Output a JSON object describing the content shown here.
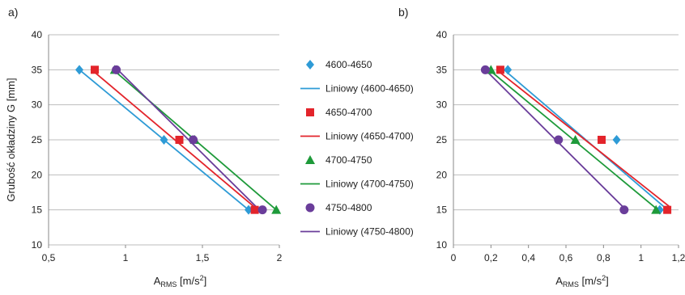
{
  "chart_data": [
    {
      "type": "scatter",
      "panel_label": "a)",
      "ylabel": "Grubość okładziny G [mm]",
      "xlabel_main": "A",
      "xlabel_sub": "RMS",
      "xlabel_unit": " [m/s",
      "xlabel_sup": "2",
      "xlabel_close": "]",
      "xlim": [
        0.5,
        2
      ],
      "ylim": [
        10,
        40
      ],
      "xticks": [
        "0,5",
        "1",
        "1,5",
        "2"
      ],
      "xtick_values": [
        0.5,
        1,
        1.5,
        2
      ],
      "yticks": [
        "10",
        "15",
        "20",
        "25",
        "30",
        "35",
        "40"
      ],
      "ytick_values": [
        10,
        15,
        20,
        25,
        30,
        35,
        40
      ],
      "grid": "horizontal",
      "series": [
        {
          "name": "4600-4650",
          "marker": "diamond",
          "color": "#2e9bd6",
          "points": [
            [
              0.7,
              35
            ],
            [
              1.25,
              25
            ],
            [
              1.8,
              15
            ]
          ],
          "trend_name": "Liniowy (4600-4650)",
          "trend": [
            [
              0.7,
              35
            ],
            [
              1.8,
              15
            ]
          ]
        },
        {
          "name": "4650-4700",
          "marker": "square",
          "color": "#e3242b",
          "points": [
            [
              0.8,
              35
            ],
            [
              1.35,
              25
            ],
            [
              1.84,
              15
            ]
          ],
          "trend_name": "Liniowy (4650-4700)",
          "trend": [
            [
              0.78,
              35
            ],
            [
              1.86,
              15
            ]
          ]
        },
        {
          "name": "4700-4750",
          "marker": "triangle",
          "color": "#1e9a3a",
          "points": [
            [
              0.93,
              35
            ],
            [
              1.45,
              25
            ],
            [
              1.98,
              15
            ]
          ],
          "trend_name": "Liniowy (4700-4750)",
          "trend": [
            [
              0.92,
              35
            ],
            [
              1.98,
              15
            ]
          ]
        },
        {
          "name": "4750-4800",
          "marker": "circle",
          "color": "#6a3d9a",
          "points": [
            [
              0.94,
              35
            ],
            [
              1.44,
              25
            ],
            [
              1.89,
              15
            ]
          ],
          "trend_name": "Liniowy (4750-4800)",
          "trend": [
            [
              0.95,
              35
            ],
            [
              1.87,
              15
            ]
          ]
        }
      ]
    },
    {
      "type": "scatter",
      "panel_label": "b)",
      "xlabel_main": "A",
      "xlabel_sub": "RMS",
      "xlabel_unit": " [m/s",
      "xlabel_sup": "2",
      "xlabel_close": "]",
      "xlim": [
        0,
        1.2
      ],
      "ylim": [
        10,
        40
      ],
      "xticks": [
        "0",
        "0,2",
        "0,4",
        "0,6",
        "0,8",
        "1",
        "1,2"
      ],
      "xtick_values": [
        0,
        0.2,
        0.4,
        0.6,
        0.8,
        1,
        1.2
      ],
      "yticks": [
        "10",
        "15",
        "20",
        "25",
        "30",
        "35",
        "40"
      ],
      "ytick_values": [
        10,
        15,
        20,
        25,
        30,
        35,
        40
      ],
      "grid": "horizontal",
      "series": [
        {
          "name": "4600-4650",
          "marker": "diamond",
          "color": "#2e9bd6",
          "points": [
            [
              0.29,
              35
            ],
            [
              0.87,
              25
            ],
            [
              1.1,
              15
            ]
          ],
          "trend_name": "Liniowy (4600-4650)",
          "trend": [
            [
              0.27,
              35
            ],
            [
              1.12,
              15.5
            ]
          ]
        },
        {
          "name": "4650-4700",
          "marker": "square",
          "color": "#e3242b",
          "points": [
            [
              0.25,
              35
            ],
            [
              0.79,
              25
            ],
            [
              1.14,
              15
            ]
          ],
          "trend_name": "Liniowy (4650-4700)",
          "trend": [
            [
              0.23,
              35
            ],
            [
              1.15,
              15.5
            ]
          ]
        },
        {
          "name": "4700-4750",
          "marker": "triangle",
          "color": "#1e9a3a",
          "points": [
            [
              0.2,
              35
            ],
            [
              0.65,
              25
            ],
            [
              1.08,
              15
            ]
          ],
          "trend_name": "Liniowy (4700-4750)",
          "trend": [
            [
              0.19,
              35
            ],
            [
              1.09,
              15
            ]
          ]
        },
        {
          "name": "4750-4800",
          "marker": "circle",
          "color": "#6a3d9a",
          "points": [
            [
              0.17,
              35
            ],
            [
              0.56,
              25
            ],
            [
              0.91,
              15
            ]
          ],
          "trend_name": "Liniowy (4750-4800)",
          "trend": [
            [
              0.17,
              35
            ],
            [
              0.92,
              15
            ]
          ]
        }
      ]
    }
  ],
  "legend": {
    "placement": "between-panels",
    "items": [
      {
        "label": "4600-4650",
        "kind": "marker",
        "marker": "diamond",
        "color": "#2e9bd6"
      },
      {
        "label": "Liniowy (4600-4650)",
        "kind": "line",
        "color": "#2e9bd6"
      },
      {
        "label": "4650-4700",
        "kind": "marker",
        "marker": "square",
        "color": "#e3242b"
      },
      {
        "label": "Liniowy (4650-4700)",
        "kind": "line",
        "color": "#e3242b"
      },
      {
        "label": "4700-4750",
        "kind": "marker",
        "marker": "triangle",
        "color": "#1e9a3a"
      },
      {
        "label": "Liniowy (4700-4750)",
        "kind": "line",
        "color": "#1e9a3a"
      },
      {
        "label": "4750-4800",
        "kind": "marker",
        "marker": "circle",
        "color": "#6a3d9a"
      },
      {
        "label": "Liniowy (4750-4800)",
        "kind": "line",
        "color": "#6a3d9a"
      }
    ]
  }
}
